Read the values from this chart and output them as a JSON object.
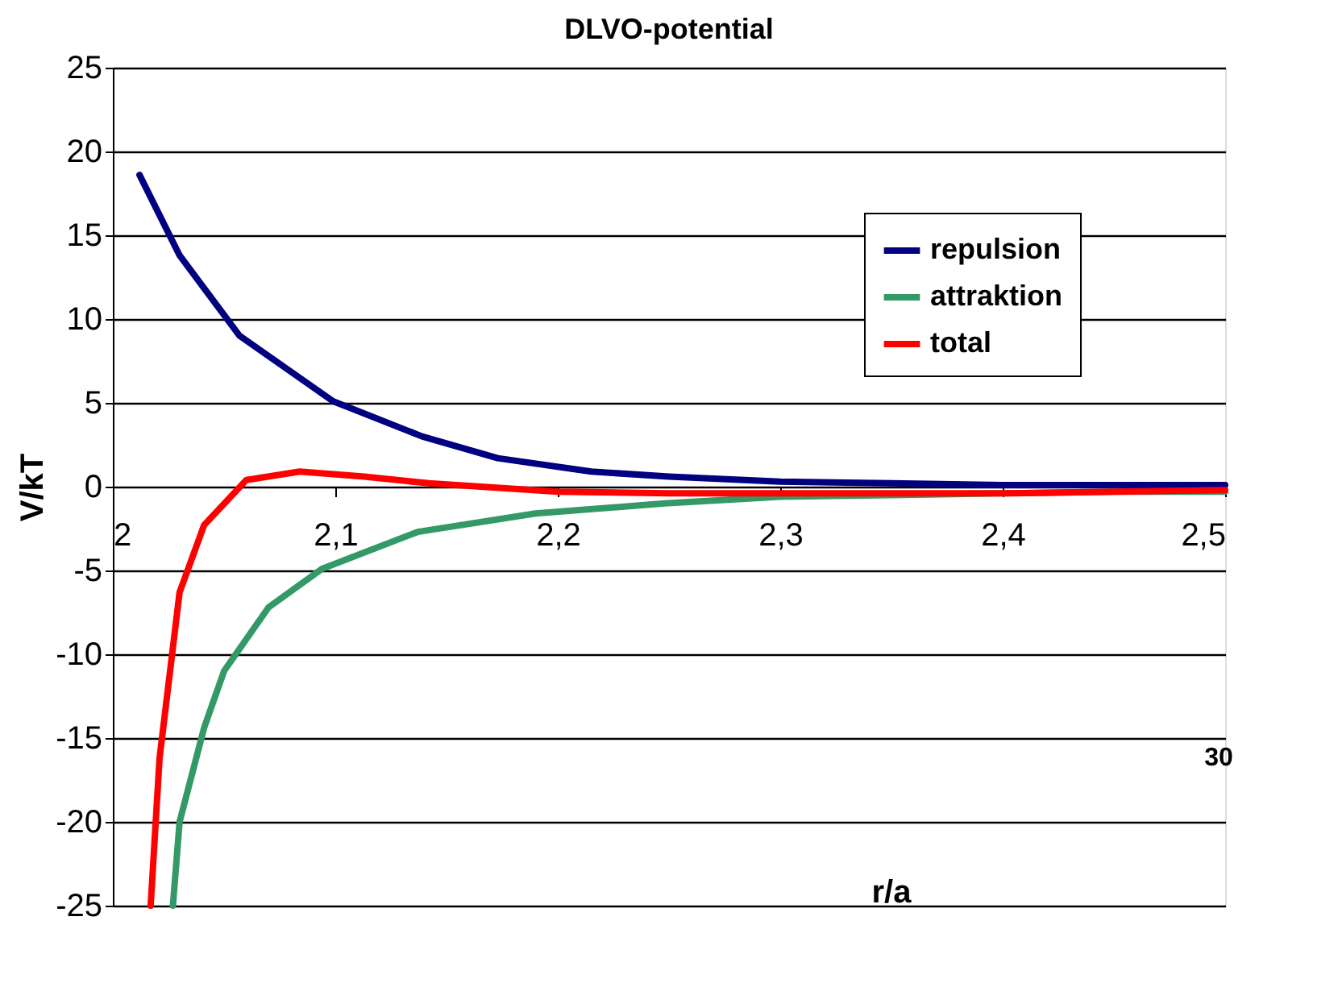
{
  "chart_data": {
    "type": "line",
    "title": "DLVO-potential",
    "xlabel": "r/a",
    "ylabel": "V/kT",
    "xlim": [
      2,
      2.5
    ],
    "ylim": [
      -25,
      25
    ],
    "xticks": [
      2,
      {
        "value": 2.1,
        "label": "2,1"
      },
      {
        "value": 2.2,
        "label": "2,2"
      },
      {
        "value": 2.3,
        "label": "2,3"
      },
      {
        "value": 2.4,
        "label": "2,4"
      },
      {
        "value": 2.5,
        "label": "2,5"
      }
    ],
    "yticks": [
      -25,
      -20,
      -15,
      -10,
      -5,
      0,
      5,
      10,
      15,
      20,
      25
    ],
    "grid": "y",
    "legend": "top right",
    "marker": "none",
    "line_style": "solid",
    "annotations": [
      "30"
    ],
    "series": [
      {
        "name": "repulsion",
        "color": "#000080",
        "x": [
          2.012,
          2.03,
          2.057,
          2.099,
          2.139,
          2.173,
          2.215,
          2.25,
          2.3,
          2.35,
          2.4,
          2.45,
          2.5
        ],
        "values": [
          18.6,
          13.8,
          9.0,
          5.1,
          3.0,
          1.7,
          0.9,
          0.6,
          0.3,
          0.2,
          0.1,
          0.1,
          0.1
        ]
      },
      {
        "name": "attraktion",
        "color": "#339966",
        "x": [
          2.027,
          2.03,
          2.041,
          2.05,
          2.07,
          2.094,
          2.137,
          2.19,
          2.248,
          2.3,
          2.35,
          2.4,
          2.45,
          2.5
        ],
        "values": [
          -25,
          -20,
          -14.4,
          -11,
          -7.2,
          -4.9,
          -2.7,
          -1.6,
          -1.0,
          -0.6,
          -0.5,
          -0.4,
          -0.3,
          -0.3
        ]
      },
      {
        "name": "total",
        "color": "#ff0000",
        "x": [
          2.017,
          2.021,
          2.03,
          2.041,
          2.06,
          2.084,
          2.113,
          2.142,
          2.2,
          2.25,
          2.3,
          2.35,
          2.4,
          2.45,
          2.5
        ],
        "values": [
          -25,
          -16.2,
          -6.3,
          -2.3,
          0.4,
          0.9,
          0.6,
          0.2,
          -0.3,
          -0.4,
          -0.4,
          -0.4,
          -0.4,
          -0.3,
          -0.2
        ]
      }
    ]
  }
}
